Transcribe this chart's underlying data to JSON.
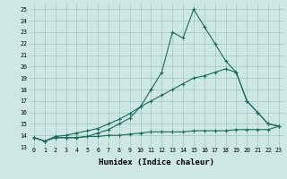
{
  "xlabel": "Humidex (Indice chaleur)",
  "bg_color": "#cde8e4",
  "grid_color": "#9ec8c2",
  "line_color": "#1a6b5a",
  "xlim": [
    -0.5,
    23.5
  ],
  "ylim": [
    13.0,
    25.5
  ],
  "yticks": [
    13,
    14,
    15,
    16,
    17,
    18,
    19,
    20,
    21,
    22,
    23,
    24,
    25
  ],
  "xticks": [
    0,
    1,
    2,
    3,
    4,
    5,
    6,
    7,
    8,
    9,
    10,
    11,
    12,
    13,
    14,
    15,
    16,
    17,
    18,
    19,
    20,
    21,
    22,
    23
  ],
  "line1_y": [
    13.8,
    13.5,
    13.8,
    13.8,
    13.8,
    13.9,
    14.2,
    14.5,
    15.0,
    15.5,
    16.5,
    18.0,
    19.5,
    23.0,
    22.5,
    25.0,
    23.5,
    22.0,
    20.5,
    19.5,
    17.0,
    16.0,
    15.0,
    14.8
  ],
  "line2_y": [
    13.8,
    13.5,
    13.9,
    14.0,
    14.2,
    14.4,
    14.6,
    15.0,
    15.4,
    15.9,
    16.5,
    17.0,
    17.5,
    18.0,
    18.5,
    19.0,
    19.2,
    19.5,
    19.8,
    19.5,
    17.0,
    16.0,
    15.0,
    14.8
  ],
  "line3_y": [
    13.8,
    13.5,
    13.8,
    13.8,
    13.8,
    13.9,
    13.9,
    14.0,
    14.0,
    14.1,
    14.2,
    14.3,
    14.3,
    14.3,
    14.3,
    14.4,
    14.4,
    14.4,
    14.4,
    14.5,
    14.5,
    14.5,
    14.5,
    14.8
  ]
}
